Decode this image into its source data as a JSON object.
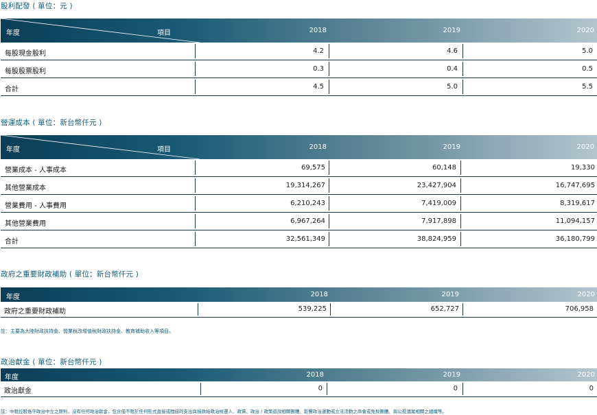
{
  "dividend": {
    "title": "股利配發 ( 單位：元 )",
    "header_year": "年度",
    "header_item": "項目",
    "years": [
      "2018",
      "2019",
      "2020"
    ],
    "rows": [
      {
        "label": "每股現金股利",
        "values": [
          "4.2",
          "4.6",
          "5.0"
        ]
      },
      {
        "label": "每股股票股利",
        "values": [
          "0.3",
          "0.4",
          "0.5"
        ]
      },
      {
        "label": "合計",
        "values": [
          "4.5",
          "5.0",
          "5.5"
        ]
      }
    ]
  },
  "opcost": {
    "title": "營運成本 ( 單位：新台幣仟元 )",
    "header_year": "年度",
    "header_item": "項目",
    "years": [
      "2018",
      "2019",
      "2020"
    ],
    "rows": [
      {
        "label": "營業成本 - 人事成本",
        "values": [
          "69,575",
          "60,148",
          "19,330"
        ]
      },
      {
        "label": "其他營業成本",
        "values": [
          "19,314,267",
          "23,427,904",
          "16,747,695"
        ]
      },
      {
        "label": "營業費用 - 人事費用",
        "values": [
          "6,210,243",
          "7,419,009",
          "8,319,617"
        ]
      },
      {
        "label": "其他營業費用",
        "values": [
          "6,967,264",
          "7,917,898",
          "11,094,157"
        ]
      },
      {
        "label": "合計",
        "values": [
          "32,561,349",
          "38,824,959",
          "36,180,799"
        ]
      }
    ]
  },
  "subsidy": {
    "title": "政府之重要財政補助 ( 單位：新台幣仟元 )",
    "header_year": "年度",
    "years": [
      "2018",
      "2019",
      "2020"
    ],
    "rows": [
      {
        "label": "政府之重要財政補助",
        "values": [
          "539,225",
          "652,727",
          "706,958"
        ]
      }
    ],
    "note": "註：主要為大陸財政扶持金、營業稅改增值稅財政扶持金、教育補助收入等項目。"
  },
  "donation": {
    "title": "政治獻金 ( 單位：新台幣仟元 )",
    "header_year": "年度",
    "years": [
      "2018",
      "2019",
      "2020"
    ],
    "rows": [
      {
        "label": "政治獻金",
        "values": [
          "0",
          "0",
          "0"
        ]
      }
    ],
    "note": "註：中租控股恪守政治中立之原則，沒有任何政治獻金，包含但不限於任何形式直接或間接的支出與捐款給政治候選人、政黨、政治 / 政策遊說相關團體、影響政治運動或立法活動之商會或免稅團體、與公投議案相關之組織等。"
  },
  "colors": {
    "header_dark": "#0b3d56",
    "header_light": "#b3c5ce",
    "title_blue": "#0e5a78",
    "rule": "#17364a"
  }
}
